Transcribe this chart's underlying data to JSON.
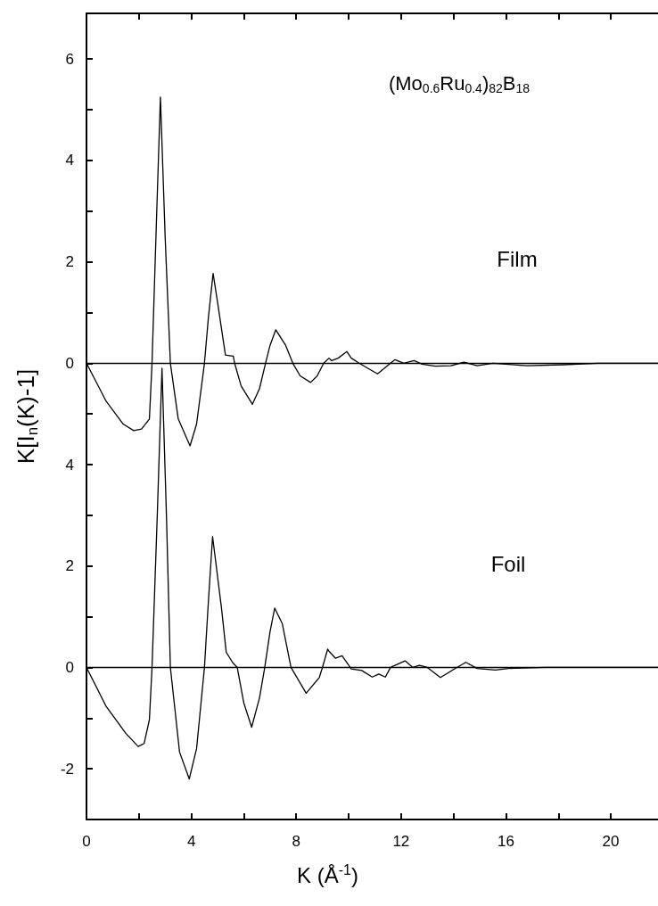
{
  "chart_data": [
    {
      "type": "line",
      "title": "(Mo$_{0.6}$Ru$_{0.4}$)$_{82}$B$_{18}$",
      "series": [
        {
          "name": "Film",
          "color": "#000000",
          "x": [
            0,
            0.75,
            1.4,
            1.8,
            2.1,
            2.4,
            2.5,
            2.65,
            2.82,
            3.0,
            3.2,
            3.5,
            3.95,
            4.2,
            4.5,
            4.65,
            4.83,
            5.0,
            5.3,
            5.6,
            5.65,
            5.9,
            6.33,
            6.6,
            6.83,
            7.0,
            7.22,
            7.6,
            7.87,
            8.15,
            8.55,
            8.8,
            9.05,
            9.25,
            9.35,
            9.6,
            9.93,
            10.1,
            10.4,
            11.1,
            11.6,
            11.77,
            12.1,
            12.5,
            12.8,
            13.3,
            13.9,
            14.4,
            14.9,
            15.5,
            16.8,
            18.2,
            19.5,
            21.8
          ],
          "values": [
            0,
            -0.75,
            -1.2,
            -1.33,
            -1.3,
            -1.1,
            0,
            2.5,
            5.25,
            2.5,
            0,
            -1.1,
            -1.63,
            -1.2,
            0,
            0.9,
            1.77,
            1.2,
            0.16,
            0.14,
            0,
            -0.45,
            -0.81,
            -0.5,
            0,
            0.35,
            0.66,
            0.35,
            0,
            -0.25,
            -0.38,
            -0.25,
            0,
            0.1,
            0.05,
            0.1,
            0.23,
            0.1,
            0,
            -0.21,
            0,
            0.07,
            0,
            0.05,
            -0.02,
            -0.06,
            -0.05,
            0.02,
            -0.05,
            0,
            -0.05,
            -0.03,
            0,
            0
          ]
        }
      ],
      "xlim": [
        0,
        21.8
      ],
      "ylim": [
        -9,
        6.9
      ],
      "xticks": [
        0,
        {
          "value": 2,
          "label": null
        },
        4,
        {
          "value": 6,
          "label": null
        },
        8,
        {
          "value": 10,
          "label": null
        },
        12,
        {
          "value": 14,
          "label": null
        },
        16,
        {
          "value": 18,
          "label": null
        },
        20
      ],
      "yticks": [
        0,
        {
          "value": 1,
          "label": null
        },
        2,
        {
          "value": 3,
          "label": null
        },
        4,
        {
          "value": 5,
          "label": null
        },
        6
      ],
      "ref_lines": [
        {
          "axis": "y",
          "value": 0
        }
      ],
      "tick_labels": "y"
    },
    {
      "type": "line",
      "xlabel": "K (Å$^{-1}$)",
      "ylabel": "K[I$_{n}$(K)-1]",
      "series": [
        {
          "name": "Foil",
          "color": "#000000",
          "x": [
            0,
            0.75,
            1.5,
            1.97,
            2.2,
            2.4,
            2.5,
            2.7,
            2.88,
            3.05,
            3.2,
            3.55,
            3.92,
            4.2,
            4.5,
            4.65,
            4.81,
            5.15,
            5.33,
            5.57,
            5.75,
            6.0,
            6.3,
            6.6,
            6.8,
            7.0,
            7.18,
            7.47,
            7.8,
            8.38,
            8.88,
            9.0,
            9.2,
            9.25,
            9.5,
            9.75,
            10.1,
            10.5,
            10.9,
            11.15,
            11.4,
            11.6,
            12.15,
            12.45,
            12.7,
            13.0,
            13.5,
            14.1,
            14.47,
            14.9,
            15.6,
            16.1,
            17.5,
            21.8
          ],
          "values": [
            0,
            -0.77,
            -1.3,
            -1.56,
            -1.5,
            -1.03,
            0,
            3.0,
            5.9,
            3.0,
            0,
            -1.67,
            -2.2,
            -1.6,
            0,
            1.3,
            2.58,
            1.17,
            0.3,
            0.1,
            0,
            -0.7,
            -1.18,
            -0.6,
            0,
            0.7,
            1.17,
            0.86,
            0,
            -0.51,
            -0.2,
            0,
            0.36,
            0.32,
            0.18,
            0.23,
            -0.03,
            -0.06,
            -0.19,
            -0.13,
            -0.19,
            0,
            0.13,
            0,
            0.04,
            0,
            -0.2,
            -0.01,
            0.1,
            -0.02,
            -0.05,
            -0.02,
            0,
            0
          ]
        }
      ],
      "xlim": [
        0,
        21.8
      ],
      "ylim": [
        -3,
        12.9
      ],
      "xticks": [
        0,
        {
          "value": 2,
          "label": null
        },
        4,
        {
          "value": 6,
          "label": null
        },
        8,
        {
          "value": 10,
          "label": null
        },
        12,
        {
          "value": 14,
          "label": null
        },
        16,
        {
          "value": 18,
          "label": null
        },
        20
      ],
      "yticks": [
        -2,
        {
          "value": -1,
          "label": null
        },
        0,
        {
          "value": 1,
          "label": null
        },
        2,
        {
          "value": 3,
          "label": null
        },
        4,
        {
          "value": 5,
          "label": null
        }
      ],
      "ref_lines": [
        {
          "axis": "y",
          "value": 0
        }
      ]
    }
  ]
}
